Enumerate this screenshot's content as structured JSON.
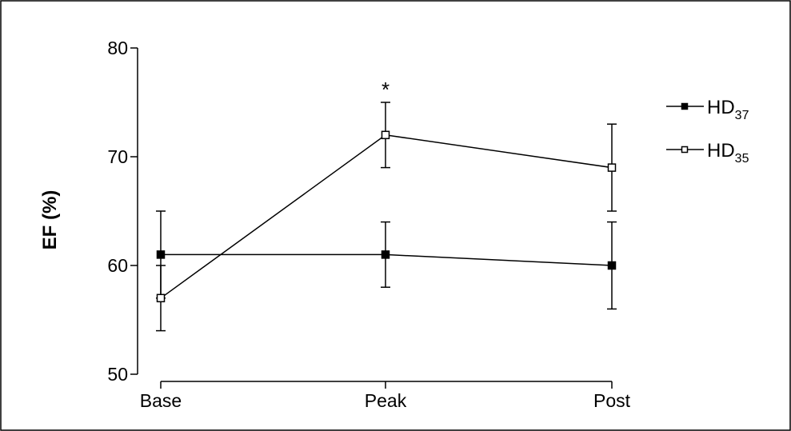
{
  "chart_data": {
    "type": "line",
    "title": "",
    "xlabel": "",
    "ylabel": "EF (%)",
    "categories": [
      "Base",
      "Peak",
      "Post"
    ],
    "ylim": [
      50,
      80
    ],
    "yticks": [
      50,
      60,
      70,
      80
    ],
    "grid": false,
    "legend_position": "right",
    "series": [
      {
        "name": "HD37",
        "label_main": "HD",
        "label_sub": "37",
        "marker": "filled-square",
        "color": "#000000",
        "values": [
          61,
          61,
          60
        ],
        "error_low": [
          57,
          58,
          56
        ],
        "error_high": [
          65,
          64,
          64
        ]
      },
      {
        "name": "HD35",
        "label_main": "HD",
        "label_sub": "35",
        "marker": "open-square",
        "color": "#000000",
        "values": [
          57,
          72,
          69
        ],
        "error_low": [
          54,
          69,
          65
        ],
        "error_high": [
          60,
          75,
          73
        ]
      }
    ],
    "annotations": [
      {
        "text": "*",
        "category": "Peak",
        "y": 77
      }
    ]
  }
}
